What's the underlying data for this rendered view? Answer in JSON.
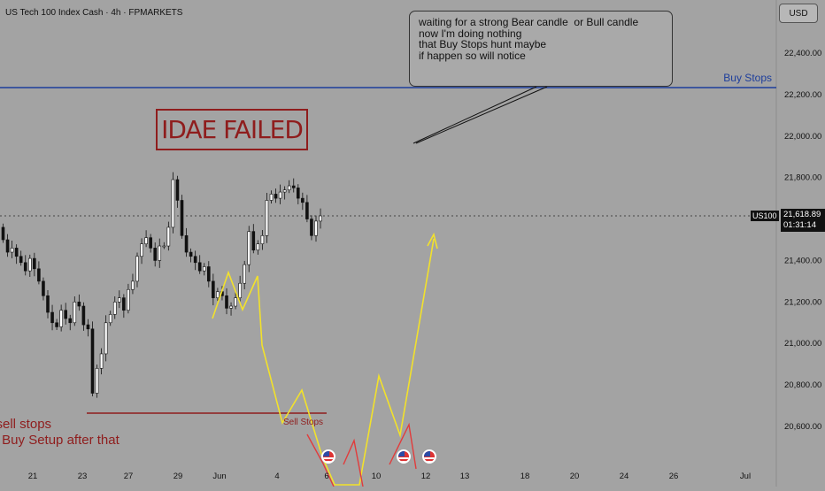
{
  "header": {
    "symbol_title": "US Tech 100 Index Cash · 4h · FPMARKETS",
    "currency": "USD"
  },
  "chart_data": {
    "type": "candlestick",
    "title": "US Tech 100 Index Cash · 4h · FPMARKETS",
    "y_ticks": [
      22400,
      22200,
      22000,
      21800,
      21600,
      21400,
      21200,
      21000,
      20800,
      20600
    ],
    "y_tick_labels": [
      "22,400.00",
      "22,200.00",
      "22,000.00",
      "21,800.00",
      "21,400.00",
      "21,200.00",
      "21,000.00",
      "20,800.00",
      "20,600.00"
    ],
    "ylim": [
      20420,
      22600
    ],
    "x_tick_labels": [
      "21",
      "23",
      "27",
      "29",
      "Jun",
      "4",
      "6",
      "10",
      "12",
      "13",
      "18",
      "20",
      "24",
      "26",
      "Jul"
    ],
    "last_price": "21,618.89",
    "last_symbol": "US100",
    "countdown": "01:31:14",
    "buy_stops_level": 22235,
    "sell_stops_level": 20655,
    "candles_close_series": [
      21500,
      21440,
      21460,
      21420,
      21390,
      21350,
      21410,
      21360,
      21300,
      21230,
      21150,
      21100,
      21080,
      21160,
      21120,
      21100,
      21200,
      21180,
      21090,
      21070,
      20760,
      20880,
      20950,
      21100,
      21140,
      21200,
      21220,
      21160,
      21260,
      21300,
      21420,
      21480,
      21510,
      21460,
      21400,
      21470,
      21470,
      21560,
      21790,
      21690,
      21520,
      21440,
      21420,
      21390,
      21350,
      21370,
      21300,
      21220,
      21250,
      21230,
      21170,
      21180,
      21220,
      21290,
      21380,
      21540,
      21450,
      21480,
      21520,
      21690,
      21720,
      21700,
      21730,
      21740,
      21760,
      21750,
      21700,
      21680,
      21600,
      21520,
      21590,
      21615
    ],
    "annotations": {
      "idea": "IDAE FAILED",
      "buy_stops": "Buy Stops",
      "sell_stops": "Sell Stops",
      "note_lines": [
        "waiting for a strong Bear candle  or Bull candle",
        "now I'm doing nothing",
        "that Buy Stops hunt maybe",
        "if happen so will notice"
      ],
      "bottom_lines": [
        "this sell stops",
        "g for Buy Setup after that"
      ]
    },
    "colors": {
      "background": "#a3a3a3",
      "buy_stops_line": "#1d3e9c",
      "sell_stops_line": "#8f1d1d",
      "yellow_path": "#f2e12b",
      "red_path": "#e23b3b",
      "candle_up": "#ffffff",
      "candle_down": "#111111"
    }
  }
}
